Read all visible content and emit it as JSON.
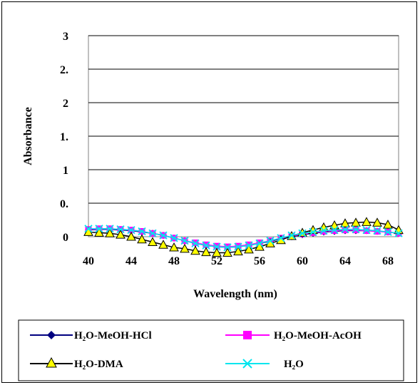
{
  "chart_data": {
    "type": "line",
    "title": "",
    "xlabel": "Wavelength (nm)",
    "ylabel": "Absorbance",
    "x_ticks": [
      "40",
      "44",
      "48",
      "52",
      "56",
      "60",
      "64",
      "68"
    ],
    "y_ticks": [
      "0",
      "0.",
      "1",
      "1.",
      "2",
      "2.",
      "3"
    ],
    "xlim": [
      40,
      69
    ],
    "ylim": [
      0,
      3
    ],
    "grid": "horizontal",
    "legend_position": "bottom",
    "x": [
      40,
      41,
      42,
      43,
      44,
      45,
      46,
      47,
      48,
      49,
      50,
      51,
      52,
      53,
      54,
      55,
      56,
      57,
      58,
      59,
      60,
      61,
      62,
      63,
      64,
      65,
      66,
      67,
      68,
      69
    ],
    "series": [
      {
        "name": "H2O-MeOH-HCl",
        "color": "#000080",
        "marker": "diamond",
        "values": [
          0.1,
          0.11,
          0.11,
          0.1,
          0.09,
          0.07,
          0.05,
          0.02,
          -0.02,
          -0.06,
          -0.1,
          -0.13,
          -0.15,
          -0.16,
          -0.15,
          -0.13,
          -0.1,
          -0.07,
          -0.03,
          0.0,
          0.03,
          0.05,
          0.07,
          0.08,
          0.09,
          0.09,
          0.09,
          0.08,
          0.07,
          0.05
        ]
      },
      {
        "name": "H2O-MeOH-AcOH",
        "color": "#ff00ff",
        "marker": "square",
        "values": [
          0.11,
          0.12,
          0.12,
          0.11,
          0.1,
          0.08,
          0.05,
          0.02,
          -0.02,
          -0.06,
          -0.09,
          -0.12,
          -0.14,
          -0.15,
          -0.14,
          -0.12,
          -0.09,
          -0.06,
          -0.02,
          0.01,
          0.04,
          0.06,
          0.08,
          0.09,
          0.1,
          0.1,
          0.09,
          0.08,
          0.07,
          0.05
        ]
      },
      {
        "name": "H2O-DMA",
        "color": "#000000",
        "marker": "triangle",
        "values": [
          0.07,
          0.06,
          0.05,
          0.03,
          0.0,
          -0.04,
          -0.08,
          -0.12,
          -0.16,
          -0.18,
          -0.21,
          -0.23,
          -0.24,
          -0.24,
          -0.22,
          -0.19,
          -0.15,
          -0.1,
          -0.05,
          0.01,
          0.06,
          0.1,
          0.14,
          0.17,
          0.2,
          0.21,
          0.22,
          0.21,
          0.18,
          0.1
        ]
      },
      {
        "name": "H2O",
        "color": "#00e5ee",
        "marker": "x",
        "values": [
          0.12,
          0.12,
          0.12,
          0.11,
          0.1,
          0.08,
          0.05,
          0.02,
          -0.02,
          -0.06,
          -0.1,
          -0.13,
          -0.15,
          -0.16,
          -0.15,
          -0.13,
          -0.1,
          -0.06,
          -0.02,
          0.02,
          0.05,
          0.07,
          0.09,
          0.1,
          0.11,
          0.11,
          0.1,
          0.09,
          0.07,
          0.05
        ]
      }
    ]
  },
  "legend": {
    "items": [
      {
        "label": "H₂O-MeOH-HCl"
      },
      {
        "label": "H₂O-MeOH-AcOH"
      },
      {
        "label": "H₂O-DMA"
      },
      {
        "label": "H₂O"
      }
    ]
  }
}
